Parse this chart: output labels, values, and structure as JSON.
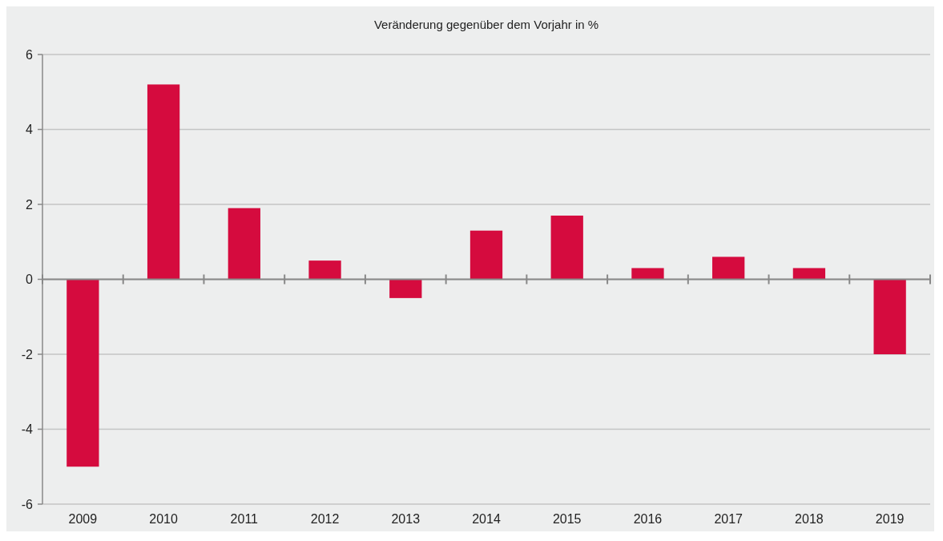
{
  "chart_data": {
    "type": "bar",
    "title": "Veränderung gegenüber dem Vorjahr in %",
    "categories": [
      "2009",
      "2010",
      "2011",
      "2012",
      "2013",
      "2014",
      "2015",
      "2016",
      "2017",
      "2018",
      "2019"
    ],
    "values": [
      -5.0,
      5.2,
      1.9,
      0.5,
      -0.5,
      1.3,
      1.7,
      0.3,
      0.6,
      0.3,
      -2.0
    ],
    "color": "#d50b3e",
    "ylim": [
      -6,
      6
    ],
    "yticks": [
      -6,
      -4,
      -2,
      0,
      2,
      4,
      6
    ],
    "grid": "y"
  }
}
